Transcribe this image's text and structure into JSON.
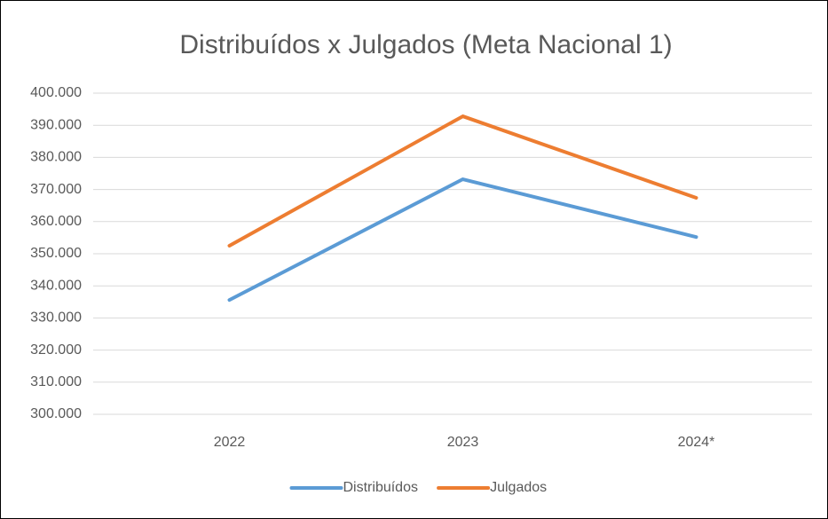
{
  "chart_data": {
    "type": "line",
    "title": "Distribuídos x Julgados (Meta Nacional 1)",
    "categories": [
      "2022",
      "2023",
      "2024*"
    ],
    "series": [
      {
        "name": "Distribuídos",
        "color": "#5b9bd5",
        "values": [
          335600,
          373200,
          355200
        ]
      },
      {
        "name": "Julgados",
        "color": "#ed7d31",
        "values": [
          352500,
          392800,
          367400
        ]
      }
    ],
    "ylim": [
      300000,
      400000
    ],
    "yticks": [
      {
        "value": 300000,
        "label": "300.000"
      },
      {
        "value": 310000,
        "label": "310.000"
      },
      {
        "value": 320000,
        "label": "320.000"
      },
      {
        "value": 330000,
        "label": "330.000"
      },
      {
        "value": 340000,
        "label": "340.000"
      },
      {
        "value": 350000,
        "label": "350.000"
      },
      {
        "value": 360000,
        "label": "360.000"
      },
      {
        "value": 370000,
        "label": "370.000"
      },
      {
        "value": 380000,
        "label": "380.000"
      },
      {
        "value": 390000,
        "label": "390.000"
      },
      {
        "value": 400000,
        "label": "400.000"
      }
    ],
    "grid": true,
    "legend": "bottom"
  }
}
